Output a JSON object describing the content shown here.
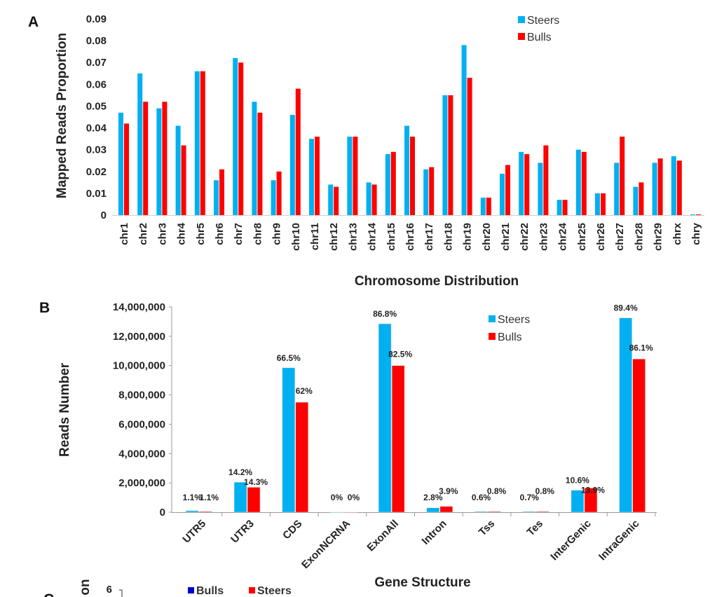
{
  "colors": {
    "steers": "#00b0f0",
    "bulls": "#ff0000",
    "panel_c_bulls": "#0000cc",
    "panel_c_steers": "#ff0000"
  },
  "chart_data": [
    {
      "panel": "A",
      "type": "bar",
      "xlabel": "Chromosome Distribution",
      "ylabel": "Mapped Reads Proportion",
      "ylim": [
        0,
        0.09
      ],
      "yticks": [
        "0",
        "0.01",
        "0.02",
        "0.03",
        "0.04",
        "0.05",
        "0.06",
        "0.07",
        "0.08",
        "0.09"
      ],
      "legend": "top-right",
      "grid": false,
      "categories": [
        "chr1",
        "chr2",
        "chr3",
        "chr4",
        "chr5",
        "chr6",
        "chr7",
        "chr8",
        "chr9",
        "chr10",
        "chr11",
        "chr12",
        "chr13",
        "chr14",
        "chr15",
        "chr16",
        "chr17",
        "chr18",
        "chr19",
        "chr20",
        "chr21",
        "chr22",
        "chr23",
        "chr24",
        "chr25",
        "chr26",
        "chr27",
        "chr28",
        "chr29",
        "chrx",
        "chry"
      ],
      "series": [
        {
          "name": "Steers",
          "values": [
            0.047,
            0.065,
            0.049,
            0.041,
            0.066,
            0.016,
            0.072,
            0.052,
            0.016,
            0.046,
            0.035,
            0.014,
            0.036,
            0.015,
            0.028,
            0.041,
            0.021,
            0.055,
            0.078,
            0.008,
            0.019,
            0.029,
            0.024,
            0.007,
            0.03,
            0.01,
            0.024,
            0.013,
            0.024,
            0.027,
            0.0003
          ]
        },
        {
          "name": "Bulls",
          "values": [
            0.042,
            0.052,
            0.052,
            0.032,
            0.066,
            0.021,
            0.07,
            0.047,
            0.02,
            0.058,
            0.036,
            0.013,
            0.036,
            0.014,
            0.029,
            0.036,
            0.022,
            0.055,
            0.063,
            0.008,
            0.023,
            0.028,
            0.032,
            0.007,
            0.029,
            0.01,
            0.036,
            0.015,
            0.026,
            0.025,
            0.0003
          ]
        }
      ]
    },
    {
      "panel": "B",
      "type": "bar",
      "xlabel": "Gene Structure",
      "ylabel": "Reads Number",
      "ylim": [
        0,
        14000000
      ],
      "yticks": [
        "0",
        "2,000,000",
        "4,000,000",
        "6,000,000",
        "8,000,000",
        "10,000,000",
        "12,000,000",
        "14,000,000"
      ],
      "legend": "top-right",
      "grid": false,
      "categories": [
        "UTR5",
        "UTR3",
        "CDS",
        "ExonNCRNA",
        "ExonAll",
        "Intron",
        "Tss",
        "Tes",
        "InterGenic",
        "IntraGenic"
      ],
      "series": [
        {
          "name": "Steers",
          "values": [
            100000,
            2050000,
            9850000,
            0,
            12850000,
            300000,
            50000,
            50000,
            1500000,
            13250000
          ],
          "labels": [
            "1.1%",
            "14.2%",
            "66.5%",
            "0%",
            "86.8%",
            "2.8%",
            "0.6%",
            "0.7%",
            "10.6%",
            "89.4%"
          ]
        },
        {
          "name": "Bulls",
          "values": [
            50000,
            1700000,
            7500000,
            0,
            10000000,
            400000,
            50000,
            50000,
            1650000,
            10450000
          ],
          "labels": [
            "1.1%",
            "14.3%",
            "62%",
            "0%",
            "82.5%",
            "3.9%",
            "0.8%",
            "0.8%",
            "13.9%",
            "86.1%"
          ]
        }
      ]
    },
    {
      "panel": "C",
      "type": "bar",
      "ylabel_visible": "on",
      "yticks": [
        "6"
      ],
      "legend_entries": [
        "Bulls",
        "Steers"
      ]
    }
  ]
}
